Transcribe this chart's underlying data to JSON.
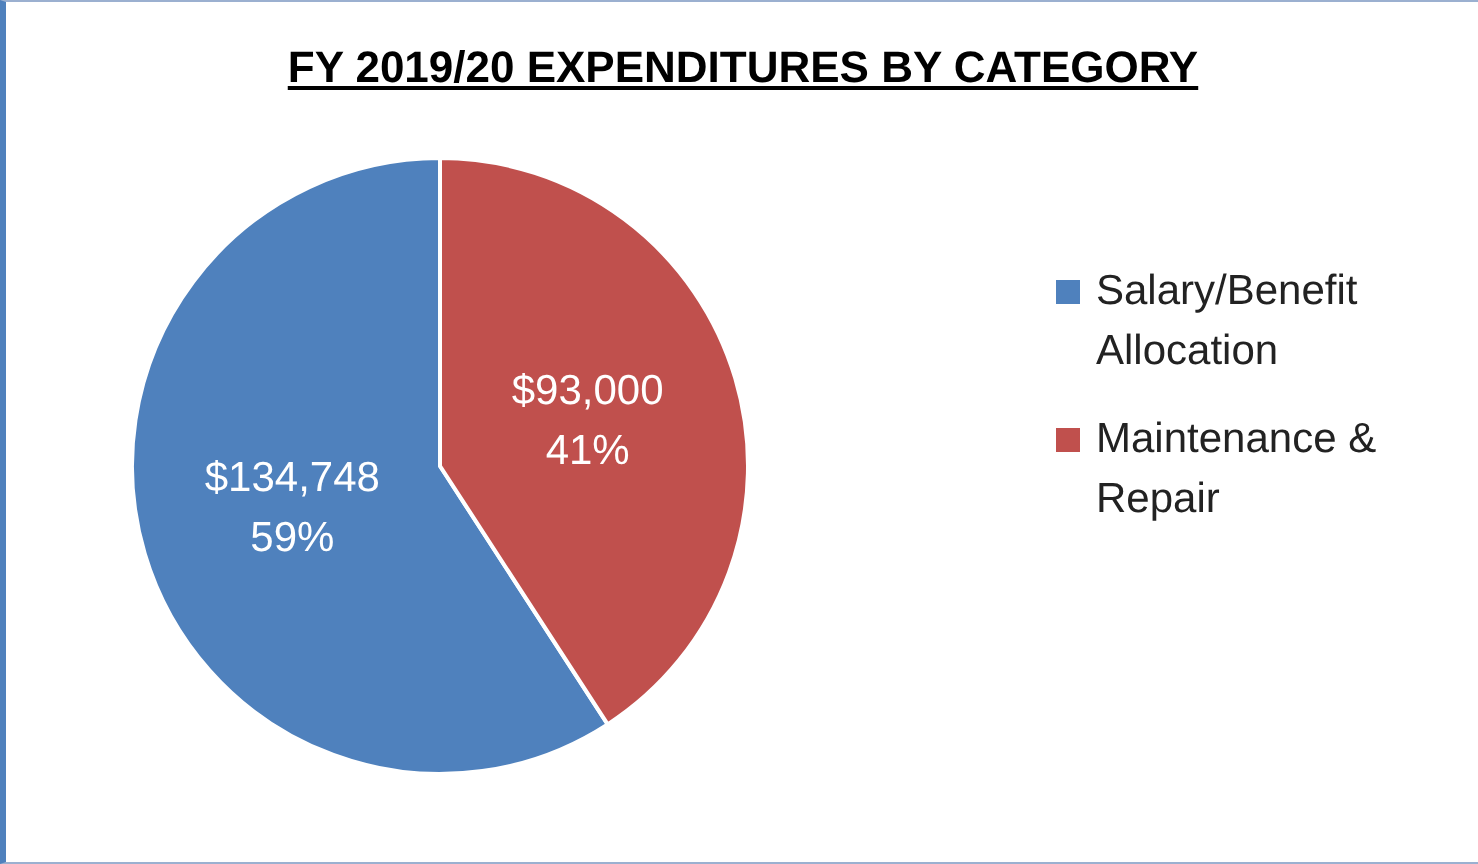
{
  "chart_data": {
    "type": "pie",
    "title": "FY 2019/20 EXPENDITURES BY CATEGORY",
    "categories": [
      "Salary/Benefit Allocation",
      "Maintenance & Repair"
    ],
    "values": [
      134748,
      93000
    ],
    "colors": [
      "#4f81bd",
      "#c0504d"
    ],
    "value_labels": [
      "$134,748\n59%",
      "$93,000\n41%"
    ],
    "legend": "right"
  }
}
